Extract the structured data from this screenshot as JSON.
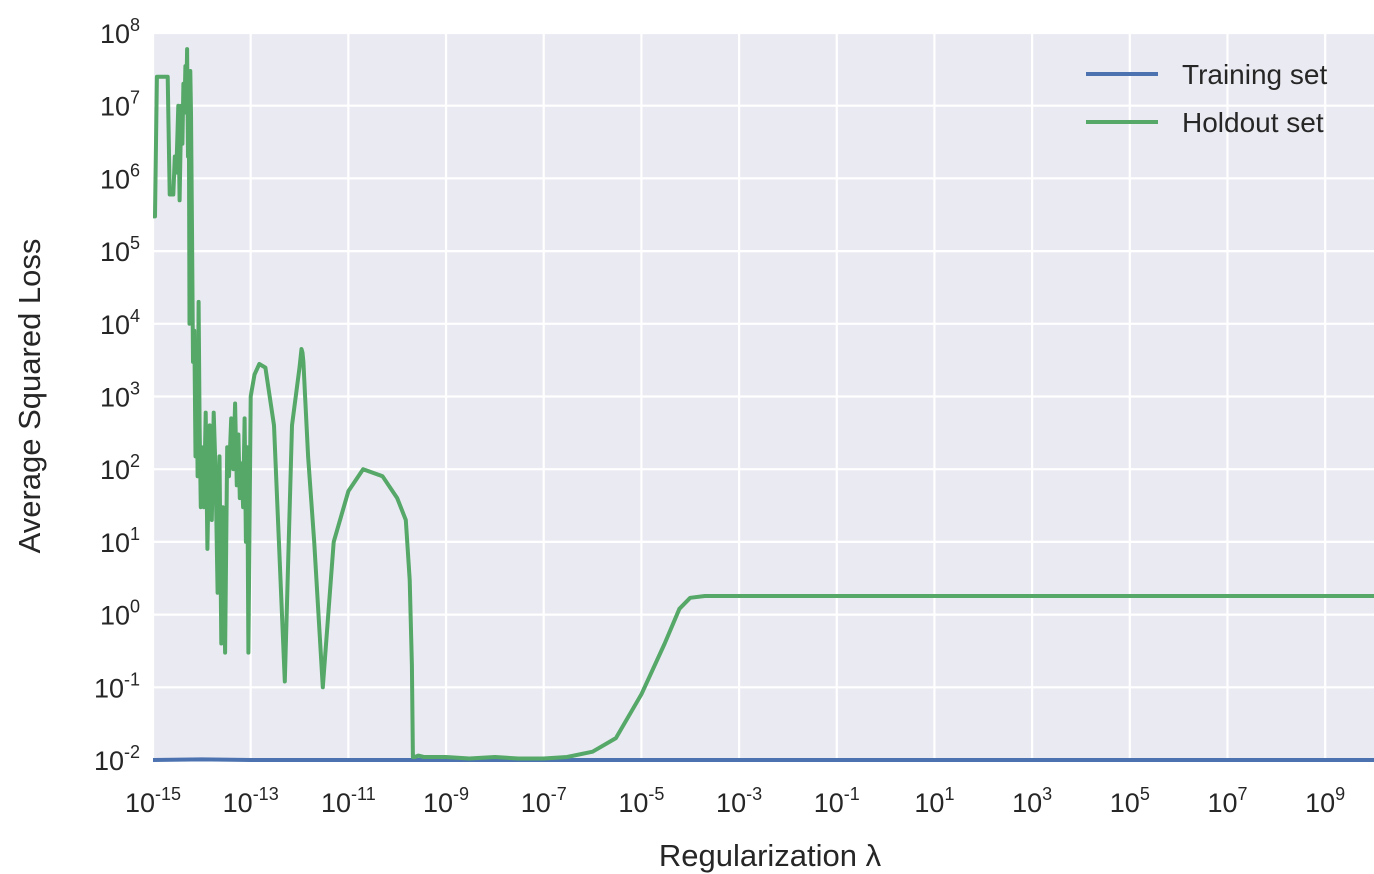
{
  "chart_data": {
    "type": "line",
    "xlabel": "Regularization λ",
    "ylabel": "Average Squared Loss",
    "x_scale": "log",
    "y_scale": "log",
    "xlim": [
      1e-15,
      10000000000.0
    ],
    "ylim": [
      0.01,
      100000000.0
    ],
    "x_ticks": [
      {
        "base": "10",
        "exp": "-15"
      },
      {
        "base": "10",
        "exp": "-13"
      },
      {
        "base": "10",
        "exp": "-11"
      },
      {
        "base": "10",
        "exp": "-9"
      },
      {
        "base": "10",
        "exp": "-7"
      },
      {
        "base": "10",
        "exp": "-5"
      },
      {
        "base": "10",
        "exp": "-3"
      },
      {
        "base": "10",
        "exp": "-1"
      },
      {
        "base": "10",
        "exp": "1"
      },
      {
        "base": "10",
        "exp": "3"
      },
      {
        "base": "10",
        "exp": "5"
      },
      {
        "base": "10",
        "exp": "7"
      },
      {
        "base": "10",
        "exp": "9"
      }
    ],
    "y_ticks": [
      {
        "base": "10",
        "exp": "-2"
      },
      {
        "base": "10",
        "exp": "-1"
      },
      {
        "base": "10",
        "exp": "0"
      },
      {
        "base": "10",
        "exp": "1"
      },
      {
        "base": "10",
        "exp": "2"
      },
      {
        "base": "10",
        "exp": "3"
      },
      {
        "base": "10",
        "exp": "4"
      },
      {
        "base": "10",
        "exp": "5"
      },
      {
        "base": "10",
        "exp": "6"
      },
      {
        "base": "10",
        "exp": "7"
      },
      {
        "base": "10",
        "exp": "8"
      }
    ],
    "grid": true,
    "legend_position": "top-right",
    "background_color": "#EAEAF2",
    "series": [
      {
        "name": "Training set",
        "color": "#4C72B0",
        "x": [
          1e-15,
          1e-14,
          1e-13,
          1e-11,
          1e-09,
          1e-07,
          1e-05,
          0.001,
          0.1,
          10.0,
          1000.0,
          100000.0,
          10000000.0,
          10000000000.0
        ],
        "y": [
          0.01,
          0.0102,
          0.01,
          0.01,
          0.01,
          0.01,
          0.01,
          0.01,
          0.01,
          0.01,
          0.01,
          0.01,
          0.01,
          0.01
        ]
      },
      {
        "name": "Holdout set",
        "color": "#55A868",
        "x": [
          1e-15,
          1.1e-15,
          1.2e-15,
          1.3e-15,
          1.8e-15,
          2e-15,
          2.2e-15,
          2.6e-15,
          2.8e-15,
          3e-15,
          3.3e-15,
          3.5e-15,
          3.8e-15,
          4e-15,
          4.2e-15,
          4.4e-15,
          4.6e-15,
          4.8e-15,
          5e-15,
          5.2e-15,
          5.4e-15,
          5.6e-15,
          5.8e-15,
          6e-15,
          6.3e-15,
          6.6e-15,
          7e-15,
          7.4e-15,
          7.8e-15,
          8.2e-15,
          8.6e-15,
          9e-15,
          9.5e-15,
          1e-14,
          1.1e-14,
          1.2e-14,
          1.3e-14,
          1.45e-14,
          1.6e-14,
          1.75e-14,
          1.9e-14,
          2.1e-14,
          2.3e-14,
          2.5e-14,
          2.7e-14,
          3e-14,
          3.3e-14,
          3.6e-14,
          4e-14,
          4.4e-14,
          4.8e-14,
          5.2e-14,
          5.6e-14,
          6e-14,
          6.5e-14,
          7e-14,
          7.5e-14,
          8e-14,
          8.5e-14,
          9e-14,
          1e-13,
          1.2e-13,
          1.5e-13,
          2e-13,
          3e-13,
          5e-13,
          7e-13,
          1e-12,
          1.1e-12,
          1.15e-12,
          1.2e-12,
          1.3e-12,
          1.5e-12,
          2e-12,
          3e-12,
          5e-12,
          1e-11,
          2e-11,
          5e-11,
          1e-10,
          1.5e-10,
          1.8e-10,
          2e-10,
          2.1e-10,
          2.3e-10,
          2.7e-10,
          3.5e-10,
          6e-10,
          1e-09,
          3e-09,
          1e-08,
          3e-08,
          1e-07,
          3e-07,
          1e-06,
          3e-06,
          1e-05,
          3e-05,
          6e-05,
          0.0001,
          0.0002,
          0.0005,
          0.001,
          0.003,
          0.01,
          0.03,
          0.1,
          1,
          3,
          10,
          30,
          100,
          300,
          1000,
          3000,
          10000,
          100000,
          1000000,
          10000000000
        ],
        "y": [
          300000,
          300000,
          25000000,
          25000000,
          25000000,
          25000000,
          600000,
          600000,
          2000000,
          1200000,
          10000000,
          500000,
          10000000,
          3000000,
          20000000,
          8000000,
          35000000,
          12000000,
          60000000,
          2000000,
          15000000,
          10000,
          30000000,
          8000000,
          200000,
          3000,
          8000,
          150,
          3000,
          80,
          20000,
          400,
          30,
          200,
          30,
          600,
          8,
          400,
          20,
          600,
          100,
          2,
          150,
          0.4,
          30,
          0.3,
          200,
          80,
          500,
          100,
          800,
          60,
          300,
          40,
          120,
          30,
          500,
          10,
          200,
          0.3,
          1000,
          2000,
          2800,
          2500,
          400,
          0.12,
          400,
          2500,
          4500,
          4000,
          3000,
          1000,
          150,
          10,
          0.1,
          10,
          50,
          100,
          80,
          40,
          20,
          3,
          0.2,
          0.011,
          0.011,
          0.0115,
          0.011,
          0.011,
          0.011,
          0.0105,
          0.011,
          0.0105,
          0.0105,
          0.011,
          0.013,
          0.02,
          0.08,
          0.4,
          1.2,
          1.7,
          1.8,
          1.8,
          1.8,
          1.8,
          1.8,
          1.8,
          1.8,
          1.8,
          1.8,
          1.8,
          1.8,
          1.8,
          1.8,
          1.8,
          1.8,
          1.8,
          1.8,
          1.8,
          1.8
        ]
      }
    ]
  }
}
